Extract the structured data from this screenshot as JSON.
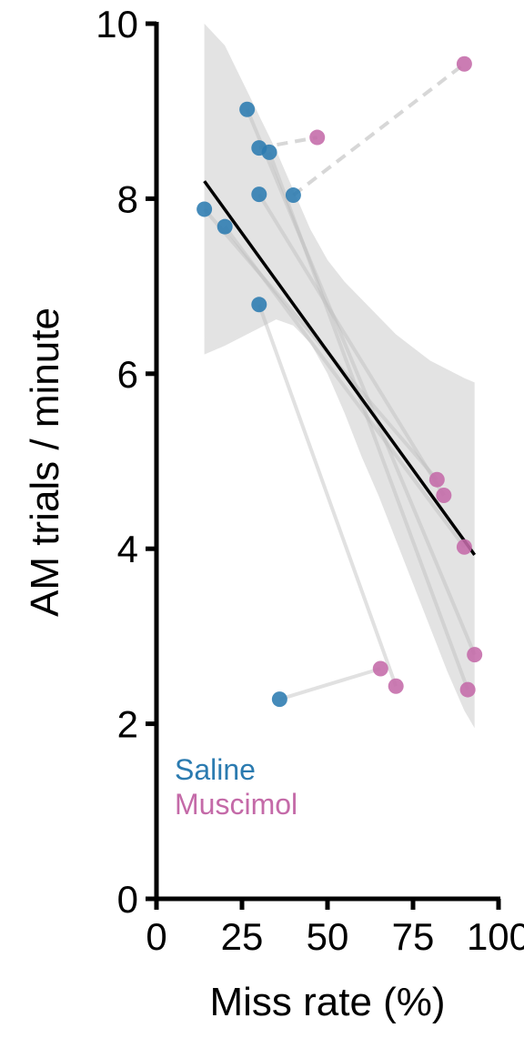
{
  "chart_data": {
    "type": "scatter",
    "xlabel": "Miss rate (%)",
    "ylabel": "AM trials / minute",
    "xlim": [
      0,
      100
    ],
    "ylim": [
      0,
      10
    ],
    "xticks": [
      0,
      25,
      50,
      75,
      100
    ],
    "yticks": [
      0,
      2,
      4,
      6,
      8,
      10
    ],
    "xtick_labels": [
      "0",
      "25",
      "50",
      "75",
      "100"
    ],
    "ytick_labels": [
      "0",
      "2",
      "4",
      "6",
      "8",
      "10"
    ],
    "legend": {
      "position": "bottom-left",
      "entries": [
        "Saline",
        "Muscimol"
      ]
    },
    "colors": {
      "Saline": "#2b7bb0",
      "Muscimol": "#c46aa8",
      "fit": "#000000",
      "ci": "#e3e3e3",
      "paired": "#bdbdbd"
    },
    "series": [
      {
        "name": "Saline",
        "points": [
          {
            "x": 14,
            "y": 7.88
          },
          {
            "x": 20,
            "y": 7.68
          },
          {
            "x": 26.5,
            "y": 9.02
          },
          {
            "x": 30,
            "y": 8.58
          },
          {
            "x": 33,
            "y": 8.53
          },
          {
            "x": 30,
            "y": 8.05
          },
          {
            "x": 40,
            "y": 8.04
          },
          {
            "x": 30,
            "y": 6.79
          },
          {
            "x": 36,
            "y": 2.28
          }
        ]
      },
      {
        "name": "Muscimol",
        "points": [
          {
            "x": 47,
            "y": 8.7
          },
          {
            "x": 90,
            "y": 9.54
          },
          {
            "x": 82,
            "y": 4.79
          },
          {
            "x": 84,
            "y": 4.61
          },
          {
            "x": 90,
            "y": 4.02
          },
          {
            "x": 93,
            "y": 2.79
          },
          {
            "x": 91,
            "y": 2.39
          },
          {
            "x": 65.5,
            "y": 2.63
          },
          {
            "x": 70,
            "y": 2.43
          }
        ]
      }
    ],
    "pairs": [
      {
        "x": [
          30,
          47
        ],
        "y": [
          8.58,
          8.7
        ],
        "style": "dashed"
      },
      {
        "x": [
          40,
          90
        ],
        "y": [
          8.04,
          9.54
        ],
        "style": "dashed"
      },
      {
        "x": [
          14,
          82
        ],
        "y": [
          7.88,
          4.79
        ],
        "style": "solid"
      },
      {
        "x": [
          20,
          90
        ],
        "y": [
          7.68,
          4.02
        ],
        "style": "solid"
      },
      {
        "x": [
          26.5,
          93
        ],
        "y": [
          9.02,
          2.79
        ],
        "style": "solid"
      },
      {
        "x": [
          33,
          91
        ],
        "y": [
          8.53,
          2.39
        ],
        "style": "solid"
      },
      {
        "x": [
          30,
          84
        ],
        "y": [
          8.05,
          4.61
        ],
        "style": "solid"
      },
      {
        "x": [
          30,
          70
        ],
        "y": [
          6.79,
          2.43
        ],
        "style": "solid"
      },
      {
        "x": [
          36,
          65.5
        ],
        "y": [
          2.28,
          2.63
        ],
        "style": "solid"
      }
    ],
    "fit": {
      "x": [
        14,
        93
      ],
      "y": [
        8.2,
        3.93
      ]
    },
    "ci_band": {
      "x": [
        14,
        20,
        25,
        30,
        35,
        40,
        45,
        50,
        55,
        60,
        65,
        70,
        75,
        80,
        85,
        90,
        93
      ],
      "upper": [
        10.0,
        9.75,
        9.35,
        8.95,
        8.55,
        8.1,
        7.65,
        7.3,
        7.05,
        6.85,
        6.65,
        6.45,
        6.3,
        6.15,
        6.05,
        5.95,
        5.9
      ],
      "lower": [
        6.22,
        6.32,
        6.42,
        6.52,
        6.62,
        6.55,
        6.35,
        6.0,
        5.55,
        5.05,
        4.6,
        4.1,
        3.6,
        3.1,
        2.6,
        2.15,
        1.95
      ]
    }
  }
}
